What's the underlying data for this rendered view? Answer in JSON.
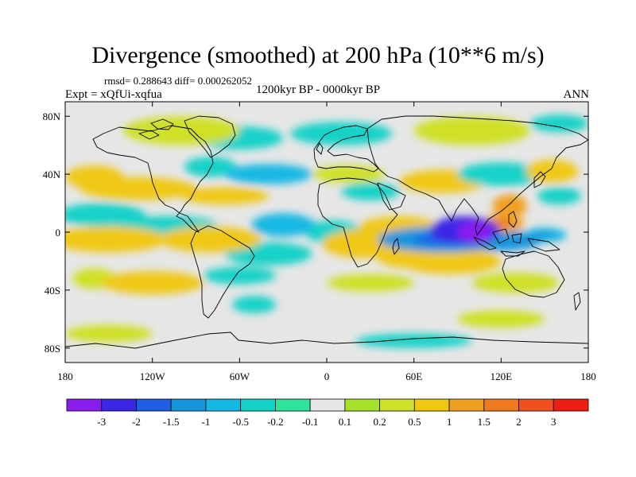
{
  "header": {
    "title": "Divergence (smoothed) at 200 hPa (10**6 m/s)",
    "stats": "rmsd= 0.288643 diff= 0.000262052",
    "expt": "Expt = xQfUi-xqfua",
    "period": "1200kyr BP - 0000kyr BP",
    "season": "ANN"
  },
  "chart_data": {
    "type": "heatmap",
    "title": "Divergence (smoothed) at 200 hPa (10**6 m/s)",
    "projection": "cylindrical equidistant",
    "x_range": [
      -180,
      180
    ],
    "y_range": [
      -90,
      90
    ],
    "x_ticks": [
      {
        "value": -180,
        "label": "180"
      },
      {
        "value": -120,
        "label": "120W"
      },
      {
        "value": -60,
        "label": "60W"
      },
      {
        "value": 0,
        "label": "0"
      },
      {
        "value": 60,
        "label": "60E"
      },
      {
        "value": 120,
        "label": "120E"
      },
      {
        "value": 180,
        "label": "180"
      }
    ],
    "y_ticks": [
      {
        "value": 80,
        "label": "80N"
      },
      {
        "value": 40,
        "label": "40N"
      },
      {
        "value": 0,
        "label": "0"
      },
      {
        "value": -40,
        "label": "40S"
      },
      {
        "value": -80,
        "label": "80S"
      }
    ],
    "colorbar": {
      "colors": [
        "#8b1cf0",
        "#3b28e6",
        "#1f5fe6",
        "#1496dc",
        "#12b8e4",
        "#14d2c8",
        "#2ee39a",
        "#e6e6e6",
        "#a6e22a",
        "#cfe028",
        "#f0c812",
        "#f0a020",
        "#f0781e",
        "#f0501c",
        "#f01e12"
      ],
      "labels": [
        "-3",
        "-2",
        "-1.5",
        "-1",
        "-0.5",
        "-0.2",
        "-0.1",
        "0.1",
        "0.2",
        "0.5",
        "1",
        "1.5",
        "2",
        "3"
      ]
    },
    "features": [
      {
        "lon": 102,
        "lat": 0,
        "rx": 12,
        "ry": 7,
        "value": -3.5
      },
      {
        "lon": 95,
        "lat": 1,
        "rx": 24,
        "ry": 10,
        "value": -2.2
      },
      {
        "lon": 80,
        "lat": -5,
        "rx": 45,
        "ry": 9,
        "value": -1.2
      },
      {
        "lon": 118,
        "lat": -6,
        "rx": 30,
        "ry": 7,
        "value": -1.1
      },
      {
        "lon": 150,
        "lat": -2,
        "rx": 15,
        "ry": 5,
        "value": -1.0
      },
      {
        "lon": 120,
        "lat": 6,
        "rx": 16,
        "ry": 6,
        "value": 1.3
      },
      {
        "lon": 126,
        "lat": 18,
        "rx": 12,
        "ry": 8,
        "value": 1.0
      },
      {
        "lon": 85,
        "lat": -20,
        "rx": 35,
        "ry": 9,
        "value": 0.8
      },
      {
        "lon": 60,
        "lat": -18,
        "rx": 25,
        "ry": 7,
        "value": 0.5
      },
      {
        "lon": 50,
        "lat": 3,
        "rx": 28,
        "ry": 8,
        "value": 0.9
      },
      {
        "lon": 25,
        "lat": -8,
        "rx": 28,
        "ry": 10,
        "value": 0.6
      },
      {
        "lon": 5,
        "lat": 0,
        "rx": 20,
        "ry": 8,
        "value": -0.4
      },
      {
        "lon": -30,
        "lat": 5,
        "rx": 22,
        "ry": 8,
        "value": -0.7
      },
      {
        "lon": -40,
        "lat": -15,
        "rx": 30,
        "ry": 8,
        "value": -0.5
      },
      {
        "lon": -80,
        "lat": -5,
        "rx": 35,
        "ry": 9,
        "value": 0.7
      },
      {
        "lon": -150,
        "lat": -5,
        "rx": 40,
        "ry": 9,
        "value": 0.6
      },
      {
        "lon": -110,
        "lat": 5,
        "rx": 35,
        "ry": 6,
        "value": -0.5
      },
      {
        "lon": -155,
        "lat": 12,
        "rx": 30,
        "ry": 8,
        "value": -0.4
      },
      {
        "lon": -130,
        "lat": 30,
        "rx": 40,
        "ry": 8,
        "value": 0.6
      },
      {
        "lon": -160,
        "lat": 38,
        "rx": 20,
        "ry": 8,
        "value": 0.5
      },
      {
        "lon": -70,
        "lat": 25,
        "rx": 30,
        "ry": 6,
        "value": 0.5
      },
      {
        "lon": -40,
        "lat": 40,
        "rx": 30,
        "ry": 7,
        "value": -0.6
      },
      {
        "lon": -80,
        "lat": 45,
        "rx": 18,
        "ry": 7,
        "value": -0.3
      },
      {
        "lon": 15,
        "lat": 40,
        "rx": 25,
        "ry": 6,
        "value": 0.4
      },
      {
        "lon": 30,
        "lat": 28,
        "rx": 20,
        "ry": 6,
        "value": -0.4
      },
      {
        "lon": 80,
        "lat": 35,
        "rx": 30,
        "ry": 8,
        "value": 0.5
      },
      {
        "lon": 120,
        "lat": 40,
        "rx": 30,
        "ry": 8,
        "value": -0.5
      },
      {
        "lon": 155,
        "lat": 42,
        "rx": 18,
        "ry": 8,
        "value": 0.5
      },
      {
        "lon": 160,
        "lat": 25,
        "rx": 15,
        "ry": 6,
        "value": -0.5
      },
      {
        "lon": -100,
        "lat": 70,
        "rx": 40,
        "ry": 10,
        "value": 0.4
      },
      {
        "lon": -60,
        "lat": 65,
        "rx": 30,
        "ry": 8,
        "value": -0.3
      },
      {
        "lon": 10,
        "lat": 68,
        "rx": 35,
        "ry": 8,
        "value": -0.4
      },
      {
        "lon": 100,
        "lat": 70,
        "rx": 40,
        "ry": 10,
        "value": 0.3
      },
      {
        "lon": 160,
        "lat": 75,
        "rx": 20,
        "ry": 6,
        "value": -0.3
      },
      {
        "lon": -120,
        "lat": -35,
        "rx": 35,
        "ry": 8,
        "value": 0.5
      },
      {
        "lon": -160,
        "lat": -32,
        "rx": 15,
        "ry": 7,
        "value": 0.4
      },
      {
        "lon": -60,
        "lat": -30,
        "rx": 25,
        "ry": 6,
        "value": -0.3
      },
      {
        "lon": 30,
        "lat": -35,
        "rx": 30,
        "ry": 6,
        "value": 0.4
      },
      {
        "lon": 130,
        "lat": -35,
        "rx": 30,
        "ry": 7,
        "value": 0.4
      },
      {
        "lon": -50,
        "lat": -50,
        "rx": 15,
        "ry": 6,
        "value": -0.3
      },
      {
        "lon": 120,
        "lat": -60,
        "rx": 30,
        "ry": 6,
        "value": 0.3
      },
      {
        "lon": -150,
        "lat": -70,
        "rx": 30,
        "ry": 6,
        "value": 0.3
      },
      {
        "lon": 60,
        "lat": -75,
        "rx": 40,
        "ry": 5,
        "value": -0.3
      }
    ]
  }
}
